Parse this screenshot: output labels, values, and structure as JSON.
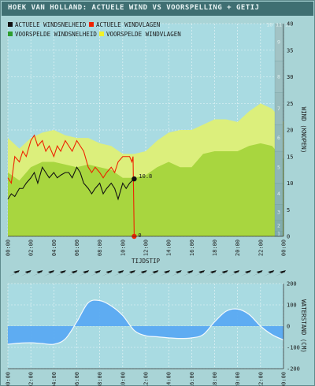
{
  "header": {
    "title": "HOEK VAN HOLLAND: ACTUELE WIND VS VOORSPELLING + GETIJ"
  },
  "legend": [
    {
      "label": "ACTUELE WINDSNELHEID",
      "color": "#111111"
    },
    {
      "label": "ACTUELE WINDVLAGEN",
      "color": "#ee2200"
    },
    {
      "label": "VOORSPELDE WINDSNELHEID",
      "color": "#2e9e2e"
    },
    {
      "label": "VOORSPELDE WINDVLAGEN",
      "color": "#f2f22a"
    }
  ],
  "colors": {
    "forecast_gusts_fill": "#dcef7c",
    "forecast_speed_fill": "#a8d63f",
    "actual_speed_line": "#111111",
    "actual_gusts_line": "#ee2200",
    "tide_fill": "#5aaaf2",
    "tide_line": "#ffffff",
    "grid": "#ffffff",
    "beaufort_scale": "#8fb5b8"
  },
  "chart_data": [
    {
      "type": "area",
      "title": "HOEK VAN HOLLAND: ACTUELE WIND VS VOORSPELLING + GETIJ",
      "xlabel": "TIJDSTIP",
      "ylabel": "WIND (KNOPEN)",
      "x_ticks": [
        "00:00",
        "02:00",
        "04:00",
        "06:00",
        "08:00",
        "10:00",
        "12:00",
        "14:00",
        "16:00",
        "18:00",
        "20:00",
        "22:00",
        "00:00"
      ],
      "y_ticks": [
        0,
        5,
        10,
        15,
        20,
        25,
        30,
        35,
        40
      ],
      "ylim": [
        0,
        40
      ],
      "xlim_hours": [
        0,
        24
      ],
      "beaufort_scale": [
        "1",
        "2",
        "3",
        "4",
        "5",
        "6",
        "7",
        "8",
        "9",
        "10",
        "11",
        "12"
      ],
      "current_value_labels": {
        "speed": "10.8",
        "gusts": "0"
      },
      "series": [
        {
          "name": "VOORSPELDE WINDVLAGEN",
          "x": [
            0,
            1,
            2,
            3,
            4,
            5,
            6,
            7,
            8,
            9,
            10,
            11,
            12,
            13,
            14,
            15,
            16,
            17,
            18,
            19,
            20,
            21,
            22,
            23,
            24
          ],
          "values": [
            18.5,
            16.5,
            18.5,
            19.5,
            20,
            19,
            18.5,
            18.5,
            17.5,
            17,
            15.5,
            15.5,
            16,
            18,
            19.5,
            20,
            20,
            21,
            22,
            22,
            21.5,
            23.5,
            25,
            24,
            21.5
          ]
        },
        {
          "name": "VOORSPELDE WINDSNELHEID",
          "x": [
            0,
            1,
            2,
            3,
            4,
            5,
            6,
            7,
            8,
            9,
            10,
            11,
            12,
            13,
            14,
            15,
            16,
            17,
            18,
            19,
            20,
            21,
            22,
            23,
            24
          ],
          "values": [
            12,
            10.5,
            13,
            14,
            14,
            13.5,
            13,
            13.5,
            13,
            12.5,
            11,
            11,
            11.5,
            13,
            14,
            13,
            13,
            15.5,
            16,
            16,
            16,
            17,
            17.5,
            17,
            14.5
          ]
        },
        {
          "name": "ACTUELE WINDSNELHEID",
          "x": [
            0,
            0.3,
            0.6,
            1,
            1.3,
            1.6,
            2,
            2.3,
            2.6,
            3,
            3.3,
            3.6,
            4,
            4.3,
            4.6,
            5,
            5.3,
            5.6,
            6,
            6.3,
            6.6,
            7,
            7.3,
            7.6,
            8,
            8.3,
            8.6,
            9,
            9.3,
            9.6,
            10,
            10.3,
            10.6,
            11
          ],
          "values": [
            7,
            8,
            7.5,
            9,
            9,
            10,
            11,
            12,
            10,
            13,
            12,
            11,
            12,
            11,
            11.5,
            12,
            12,
            11,
            13,
            12,
            10,
            9,
            8,
            9,
            10,
            8,
            9,
            10,
            9,
            7,
            10,
            9,
            10,
            10.8
          ]
        },
        {
          "name": "ACTUELE WINDVLAGEN",
          "x": [
            0,
            0.3,
            0.6,
            1,
            1.3,
            1.6,
            2,
            2.3,
            2.6,
            3,
            3.3,
            3.6,
            4,
            4.3,
            4.6,
            5,
            5.3,
            5.6,
            6,
            6.3,
            6.6,
            7,
            7.3,
            7.6,
            8,
            8.3,
            8.6,
            9,
            9.3,
            9.6,
            10,
            10.2,
            10.4,
            10.6,
            10.8,
            10.9,
            11
          ],
          "values": [
            11,
            10,
            15,
            14,
            16,
            15,
            18,
            19,
            17,
            18,
            16,
            17,
            15,
            17,
            16,
            18,
            17,
            16,
            18,
            17,
            16,
            13,
            12,
            13,
            12,
            11,
            12,
            13,
            12,
            14,
            15,
            15,
            15,
            15,
            14,
            15,
            0
          ]
        }
      ]
    },
    {
      "type": "area",
      "xlabel": "",
      "ylabel": "WATERSTAND (CM)",
      "x_ticks": [
        "00:00",
        "02:00",
        "04:00",
        "06:00",
        "08:00",
        "10:00",
        "12:00",
        "14:00",
        "16:00",
        "18:00",
        "20:00",
        "22:00",
        "00:00"
      ],
      "y_ticks": [
        200,
        100,
        0,
        -100,
        -200
      ],
      "ylim": [
        -200,
        200
      ],
      "xlim_hours": [
        0,
        24
      ],
      "series": [
        {
          "name": "",
          "x": [
            0,
            1,
            2,
            3,
            4,
            5,
            6,
            7,
            8,
            9,
            10,
            11,
            12,
            13,
            14,
            15,
            16,
            17,
            18,
            19,
            20,
            21,
            22,
            23,
            24
          ],
          "values": [
            -85,
            -80,
            -78,
            -82,
            -85,
            -60,
            20,
            110,
            120,
            95,
            50,
            -20,
            -45,
            -50,
            -55,
            -58,
            -55,
            -40,
            20,
            70,
            80,
            55,
            0,
            -40,
            -65
          ]
        }
      ]
    }
  ],
  "wind_arrows": {
    "count": 24,
    "icon": "wind-direction-arrow-icon"
  }
}
